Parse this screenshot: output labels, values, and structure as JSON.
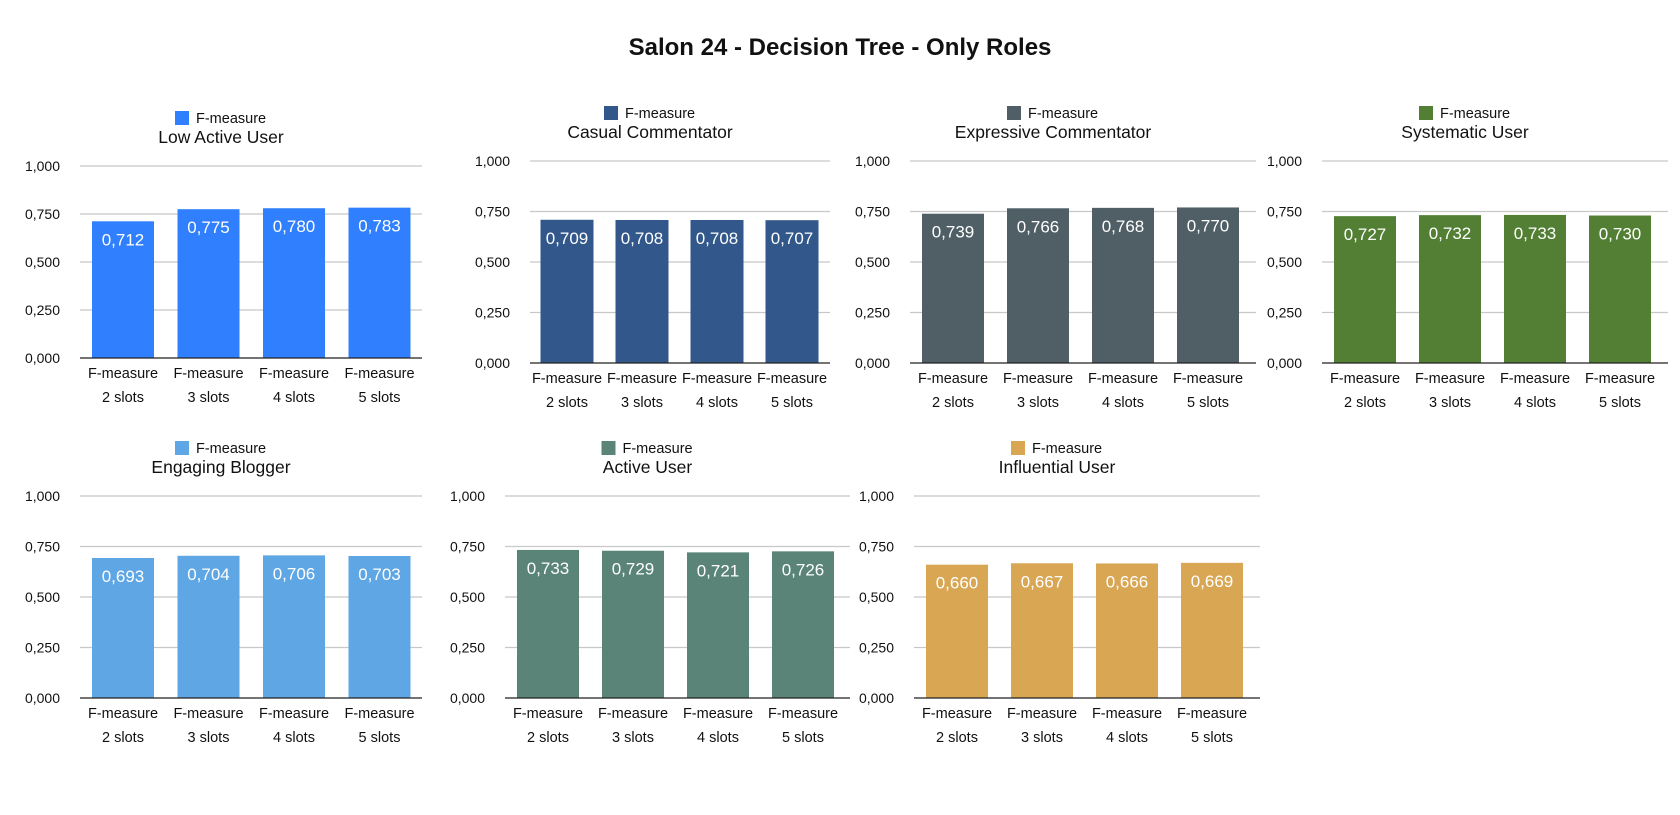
{
  "title": "Salon 24 - Decision Tree - Only Roles",
  "chart_data": [
    {
      "type": "bar",
      "title": "Low Active User",
      "legend": "F-measure",
      "color": "#2f7ffe",
      "categories": [
        [
          "F-measure",
          "2 slots"
        ],
        [
          "F-measure",
          "3 slots"
        ],
        [
          "F-measure",
          "4 slots"
        ],
        [
          "F-measure",
          "5 slots"
        ]
      ],
      "values": [
        0.712,
        0.775,
        0.78,
        0.783
      ],
      "value_labels": [
        "0,712",
        "0,775",
        "0,780",
        "0,783"
      ],
      "yticks": [
        "0,000",
        "0,250",
        "0,500",
        "0,750",
        "1,000"
      ],
      "ylim": [
        0,
        1
      ]
    },
    {
      "type": "bar",
      "title": "Casual Commentator",
      "legend": "F-measure",
      "color": "#32578b",
      "categories": [
        [
          "F-measure",
          "2 slots"
        ],
        [
          "F-measure",
          "3 slots"
        ],
        [
          "F-measure",
          "4 slots"
        ],
        [
          "F-measure",
          "5 slots"
        ]
      ],
      "values": [
        0.709,
        0.708,
        0.708,
        0.707
      ],
      "value_labels": [
        "0,709",
        "0,708",
        "0,708",
        "0,707"
      ],
      "yticks": [
        "0,000",
        "0,250",
        "0,500",
        "0,750",
        "1,000"
      ],
      "ylim": [
        0,
        1
      ]
    },
    {
      "type": "bar",
      "title": "Expressive Commentator",
      "legend": "F-measure",
      "color": "#4f5f65",
      "categories": [
        [
          "F-measure",
          "2 slots"
        ],
        [
          "F-measure",
          "3 slots"
        ],
        [
          "F-measure",
          "4 slots"
        ],
        [
          "F-measure",
          "5 slots"
        ]
      ],
      "values": [
        0.739,
        0.766,
        0.768,
        0.77
      ],
      "value_labels": [
        "0,739",
        "0,766",
        "0,768",
        "0,770"
      ],
      "yticks": [
        "0,000",
        "0,250",
        "0,500",
        "0,750",
        "1,000"
      ],
      "ylim": [
        0,
        1
      ]
    },
    {
      "type": "bar",
      "title": "Systematic User",
      "legend": "F-measure",
      "color": "#527f33",
      "categories": [
        [
          "F-measure",
          "2 slots"
        ],
        [
          "F-measure",
          "3 slots"
        ],
        [
          "F-measure",
          "4 slots"
        ],
        [
          "F-measure",
          "5 slots"
        ]
      ],
      "values": [
        0.727,
        0.732,
        0.733,
        0.73
      ],
      "value_labels": [
        "0,727",
        "0,732",
        "0,733",
        "0,730"
      ],
      "yticks": [
        "0,000",
        "0,250",
        "0,500",
        "0,750",
        "1,000"
      ],
      "ylim": [
        0,
        1
      ]
    },
    {
      "type": "bar",
      "title": "Engaging Blogger",
      "legend": "F-measure",
      "color": "#5ea6e4",
      "categories": [
        [
          "F-measure",
          "2 slots"
        ],
        [
          "F-measure",
          "3 slots"
        ],
        [
          "F-measure",
          "4 slots"
        ],
        [
          "F-measure",
          "5 slots"
        ]
      ],
      "values": [
        0.693,
        0.704,
        0.706,
        0.703
      ],
      "value_labels": [
        "0,693",
        "0,704",
        "0,706",
        "0,703"
      ],
      "yticks": [
        "0,000",
        "0,250",
        "0,500",
        "0,750",
        "1,000"
      ],
      "ylim": [
        0,
        1
      ]
    },
    {
      "type": "bar",
      "title": "Active User",
      "legend": "F-measure",
      "color": "#5a8478",
      "categories": [
        [
          "F-measure",
          "2 slots"
        ],
        [
          "F-measure",
          "3 slots"
        ],
        [
          "F-measure",
          "4 slots"
        ],
        [
          "F-measure",
          "5 slots"
        ]
      ],
      "values": [
        0.733,
        0.729,
        0.721,
        0.726
      ],
      "value_labels": [
        "0,733",
        "0,729",
        "0,721",
        "0,726"
      ],
      "yticks": [
        "0,000",
        "0,250",
        "0,500",
        "0,750",
        "1,000"
      ],
      "ylim": [
        0,
        1
      ]
    },
    {
      "type": "bar",
      "title": "Influential User",
      "legend": "F-measure",
      "color": "#d9a653",
      "categories": [
        [
          "F-measure",
          "2 slots"
        ],
        [
          "F-measure",
          "3 slots"
        ],
        [
          "F-measure",
          "4 slots"
        ],
        [
          "F-measure",
          "5 slots"
        ]
      ],
      "values": [
        0.66,
        0.667,
        0.666,
        0.669
      ],
      "value_labels": [
        "0,660",
        "0,667",
        "0,666",
        "0,669"
      ],
      "yticks": [
        "0,000",
        "0,250",
        "0,500",
        "0,750",
        "1,000"
      ],
      "ylim": [
        0,
        1
      ]
    }
  ]
}
